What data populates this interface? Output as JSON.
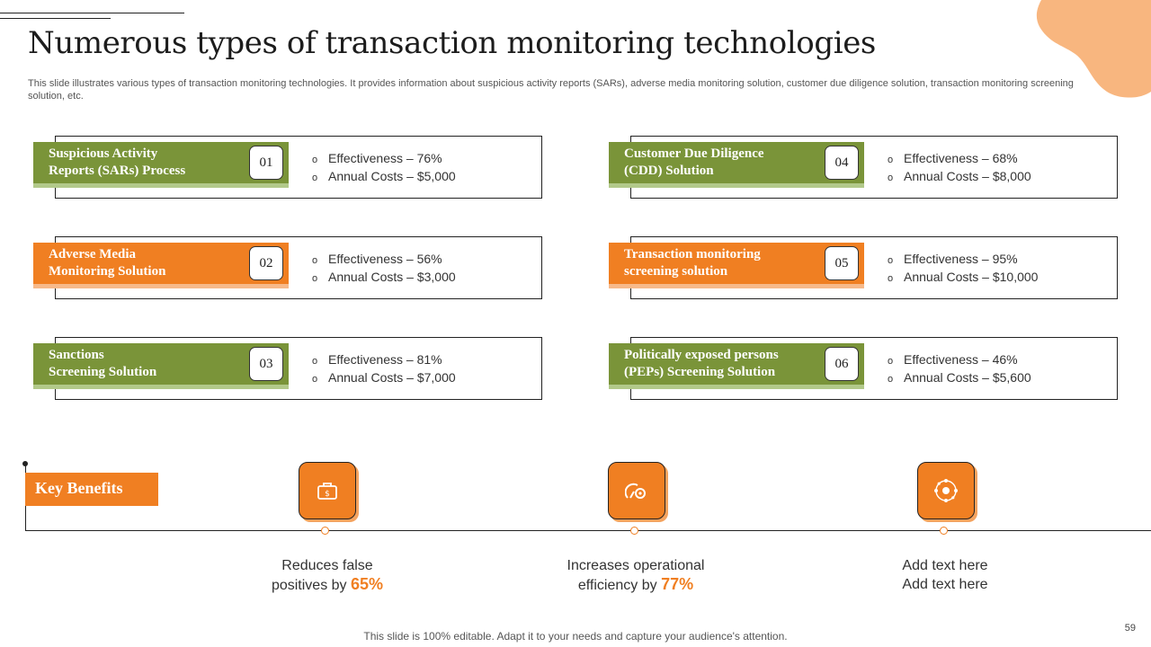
{
  "title": "Numerous types of transaction monitoring technologies",
  "subtitle": "This slide illustrates various types of transaction monitoring technologies. It provides information about suspicious activity reports (SARs), adverse media monitoring solution, customer due diligence solution, transaction monitoring screening solution, etc.",
  "cards": [
    {
      "line1": "Suspicious Activity",
      "line2": "Reports (SARs) Process",
      "num": "01",
      "effectiveness": "Effectiveness – 76%",
      "cost": "Annual Costs –  $5,000"
    },
    {
      "line1": "Adverse Media",
      "line2": "Monitoring Solution",
      "num": "02",
      "effectiveness": "Effectiveness – 56%",
      "cost": "Annual Costs –  $3,000"
    },
    {
      "line1": "Sanctions",
      "line2": "Screening Solution",
      "num": "03",
      "effectiveness": "Effectiveness – 81%",
      "cost": "Annual Costs –  $7,000"
    },
    {
      "line1": "Customer Due Diligence",
      "line2": "(CDD) Solution",
      "num": "04",
      "effectiveness": "Effectiveness – 68%",
      "cost": "Annual Costs –  $8,000"
    },
    {
      "line1": "Transaction monitoring",
      "line2": "screening solution",
      "num": "05",
      "effectiveness": "Effectiveness – 95%",
      "cost": "Annual Costs –  $10,000"
    },
    {
      "line1": "Politically  exposed persons",
      "line2": "(PEPs) Screening Solution",
      "num": "06",
      "effectiveness": "Effectiveness – 46%",
      "cost": "Annual Costs –  $5,600"
    }
  ],
  "bullet": "o",
  "key_benefits": {
    "label": "Key Benefits",
    "items": [
      {
        "icon": "briefcase-icon",
        "line1": "Reduces false",
        "line2_prefix": "positives by ",
        "pct": "65%"
      },
      {
        "icon": "gauge-settings-icon",
        "line1": "Increases  operational",
        "line2_prefix": "efficiency by ",
        "pct": "77%"
      },
      {
        "icon": "network-icon",
        "line1": "Add text here",
        "line2": "Add text here"
      }
    ]
  },
  "footer": "This slide is 100% editable. Adapt it to your needs and capture your audience's attention.",
  "page_number": "59",
  "colors": {
    "green": "#7a9439",
    "orange": "#f07f22",
    "peach": "#f8b67f"
  }
}
